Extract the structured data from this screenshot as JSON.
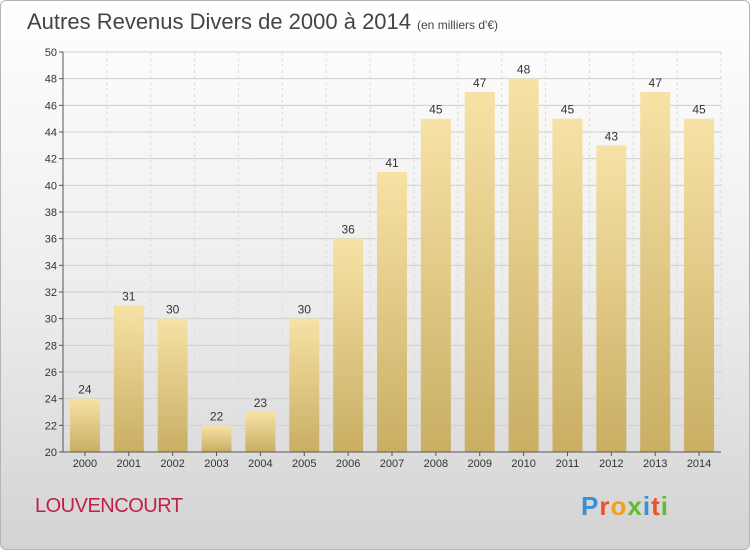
{
  "header": {
    "title": "Autres Revenus Divers de 2000 à 2014",
    "unit": "(en milliers d'€)"
  },
  "footer": {
    "commune": "LOUVENCOURT",
    "logo_text": "Proxiti"
  },
  "colors": {
    "bar_light": "#f7e2a6",
    "bar_dark": "#c9ae63",
    "commune": "#c02048",
    "grid": "#cfcfcf"
  },
  "chart_data": {
    "type": "bar",
    "title": "Autres Revenus Divers de 2000 à 2014",
    "subtitle": "(en milliers d'€)",
    "xlabel": "",
    "ylabel": "",
    "categories": [
      "2000",
      "2001",
      "2002",
      "2003",
      "2004",
      "2005",
      "2006",
      "2007",
      "2008",
      "2009",
      "2010",
      "2011",
      "2012",
      "2013",
      "2014"
    ],
    "values": [
      24,
      31,
      30,
      22,
      23,
      30,
      36,
      41,
      45,
      47,
      48,
      45,
      43,
      47,
      45
    ],
    "ylim": [
      20,
      50
    ],
    "yticks": [
      20,
      22,
      24,
      26,
      28,
      30,
      32,
      34,
      36,
      38,
      40,
      42,
      44,
      46,
      48,
      50
    ],
    "grid": true,
    "legend": "none"
  }
}
